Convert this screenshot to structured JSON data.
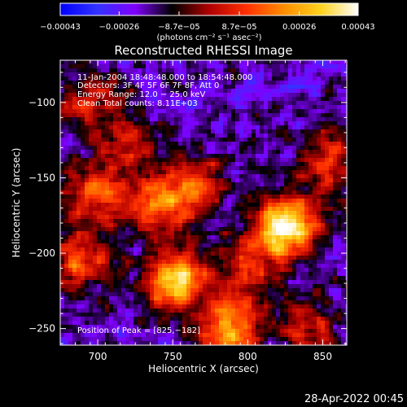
{
  "chart_data": {
    "type": "heatmap",
    "title": "Reconstructed RHESSI Image",
    "xlabel": "Heliocentric X (arcsec)",
    "ylabel": "Heliocentric Y (arcsec)",
    "xlim": [
      675,
      866
    ],
    "ylim": [
      -261,
      -72
    ],
    "xticks": [
      700,
      750,
      800,
      850
    ],
    "xtick_labels": [
      "700",
      "750",
      "800",
      "850"
    ],
    "yticks": [
      -100,
      -150,
      -200,
      -250
    ],
    "ytick_labels": [
      "−100",
      "−150",
      "−200",
      "−250"
    ],
    "colorbar": {
      "range": [
        -0.00043,
        0.00043
      ],
      "ticks": [
        -0.00043,
        -0.00026,
        -8.7e-05,
        8.7e-05,
        0.00026,
        0.00043
      ],
      "tick_labels": [
        "−0.00043",
        "−0.00026",
        "−8.7e−05",
        "8.7e−05",
        "0.00026",
        "0.00043"
      ],
      "unit": "(photons cm⁻² s⁻¹ asec⁻²)",
      "colormap": [
        "#0000ff",
        "#3333ff",
        "#8000ff",
        "#000000",
        "#b00000",
        "#ff3000",
        "#ff8c00",
        "#ffd21e",
        "#ffffff"
      ]
    },
    "annotations": [
      "11-Jan-2004 18:48:48.000 to 18:54:48.000",
      "Detectors: 3F 4F 5F 6F 7F 8F, Att 0",
      "Energy Range: 12.0 − 25.0 keV",
      "Clean     Total counts: 8.11E+03",
      "Position of Peak = [825,−182]"
    ],
    "sources": [
      {
        "x": 825,
        "y": -182,
        "peak": 1.0
      },
      {
        "x": 752,
        "y": -218,
        "peak": 0.85
      },
      {
        "x": 790,
        "y": -250,
        "peak": 0.7
      },
      {
        "x": 700,
        "y": -160,
        "peak": 0.55
      },
      {
        "x": 690,
        "y": -205,
        "peak": 0.5
      },
      {
        "x": 740,
        "y": -168,
        "peak": 0.5
      },
      {
        "x": 765,
        "y": -155,
        "peak": 0.45
      },
      {
        "x": 855,
        "y": -140,
        "peak": 0.45
      },
      {
        "x": 695,
        "y": -100,
        "peak": 0.35
      },
      {
        "x": 720,
        "y": -125,
        "peak": 0.3
      },
      {
        "x": 800,
        "y": -210,
        "peak": 0.4
      },
      {
        "x": 840,
        "y": -250,
        "peak": 0.35
      }
    ]
  },
  "footer": {
    "timestamp": "28-Apr-2022 00:45"
  }
}
